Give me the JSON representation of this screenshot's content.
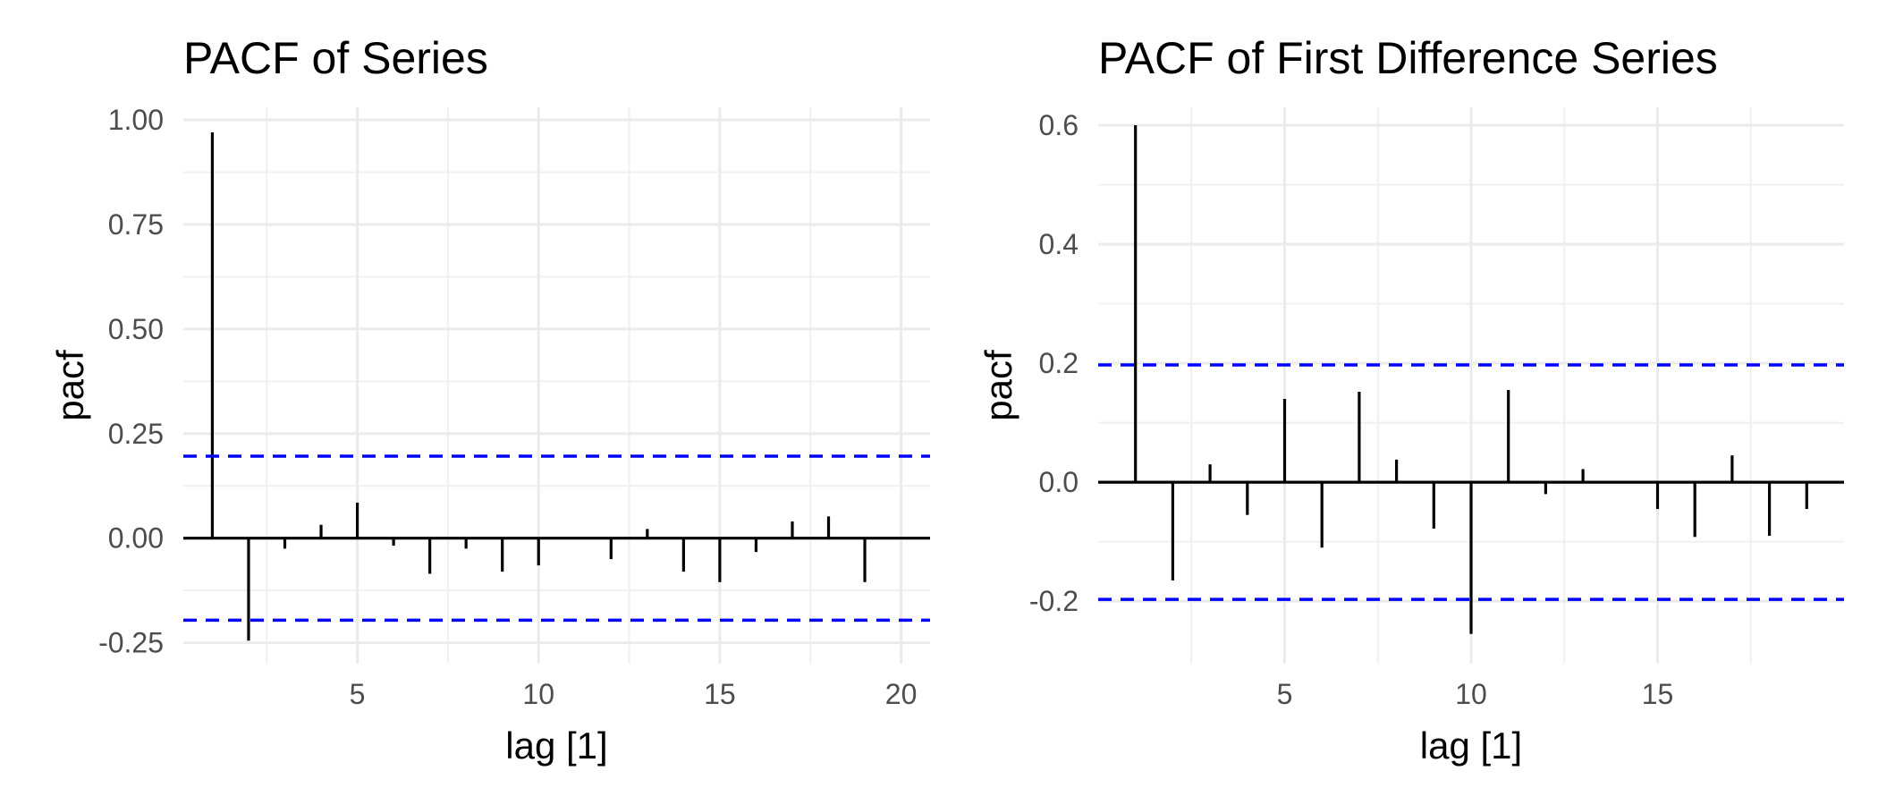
{
  "chart_data": [
    {
      "type": "bar",
      "subtype": "pacf",
      "title": "PACF of Series",
      "xlabel": "lag [1]",
      "ylabel": "pacf",
      "xlim": [
        0.2,
        20.8
      ],
      "ylim": [
        -0.3,
        1.03
      ],
      "x_ticks": [
        5,
        10,
        15,
        20
      ],
      "x_tick_labels": [
        "5",
        "10",
        "15",
        "20"
      ],
      "y_ticks": [
        -0.25,
        0,
        0.25,
        0.5,
        0.75,
        1
      ],
      "y_tick_labels": [
        "-0.25",
        "0.00",
        "0.25",
        "0.50",
        "0.75",
        "1.00"
      ],
      "confidence_bound": 0.196,
      "confidence_color": "#0000ff",
      "grid": true,
      "x": [
        1,
        2,
        3,
        4,
        5,
        6,
        7,
        8,
        9,
        10,
        11,
        12,
        13,
        14,
        15,
        16,
        17,
        18,
        19,
        20
      ],
      "values": [
        0.97,
        -0.245,
        -0.025,
        0.032,
        0.085,
        -0.018,
        -0.085,
        -0.025,
        -0.08,
        -0.065,
        0.0,
        -0.05,
        0.022,
        -0.08,
        -0.105,
        -0.033,
        0.04,
        0.052,
        -0.105,
        0.002
      ]
    },
    {
      "type": "bar",
      "subtype": "pacf",
      "title": "PACF of First Difference Series",
      "xlabel": "lag [1]",
      "ylabel": "pacf",
      "xlim": [
        0.0,
        20.0
      ],
      "ylim": [
        -0.305,
        0.63
      ],
      "x_ticks": [
        5,
        10,
        15
      ],
      "x_tick_labels": [
        "5",
        "10",
        "15"
      ],
      "y_ticks": [
        -0.2,
        0,
        0.2,
        0.4,
        0.6
      ],
      "y_tick_labels": [
        "-0.2",
        "0.0",
        "0.2",
        "0.4",
        "0.6"
      ],
      "confidence_bound": 0.197,
      "confidence_color": "#0000ff",
      "grid": true,
      "x": [
        1,
        2,
        3,
        4,
        5,
        6,
        7,
        8,
        9,
        10,
        11,
        12,
        13,
        14,
        15,
        16,
        17,
        18,
        19
      ],
      "values": [
        0.6,
        -0.165,
        0.03,
        -0.055,
        0.14,
        -0.11,
        0.152,
        0.038,
        -0.078,
        -0.255,
        0.155,
        -0.02,
        0.022,
        0.0,
        -0.045,
        -0.092,
        0.045,
        -0.09,
        -0.045
      ]
    }
  ]
}
